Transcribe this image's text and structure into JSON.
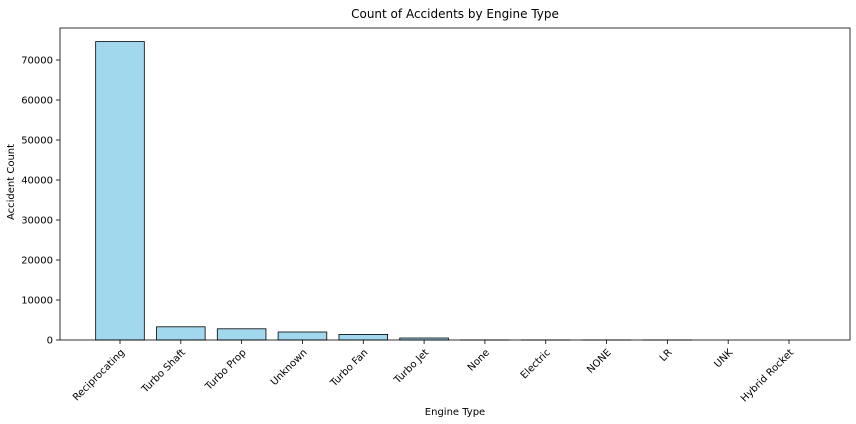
{
  "chart_data": {
    "type": "bar",
    "title": "Count of Accidents by Engine Type",
    "xlabel": "Engine Type",
    "ylabel": "Accident Count",
    "categories": [
      "Reciprocating",
      "Turbo Shaft",
      "Turbo Prop",
      "Unknown",
      "Turbo Fan",
      "Turbo Jet",
      "None",
      "Electric",
      "NONE",
      "LR",
      "UNK",
      "Hybrid Rocket"
    ],
    "values": [
      74600,
      3300,
      2800,
      2000,
      1400,
      500,
      15,
      10,
      5,
      4,
      1,
      1
    ],
    "ylim": [
      0,
      78000
    ],
    "yticks": [
      0,
      10000,
      20000,
      30000,
      40000,
      50000,
      60000,
      70000
    ],
    "bar_color": "#a1d8ee",
    "bar_edge_color": "#000000",
    "grid": false
  }
}
